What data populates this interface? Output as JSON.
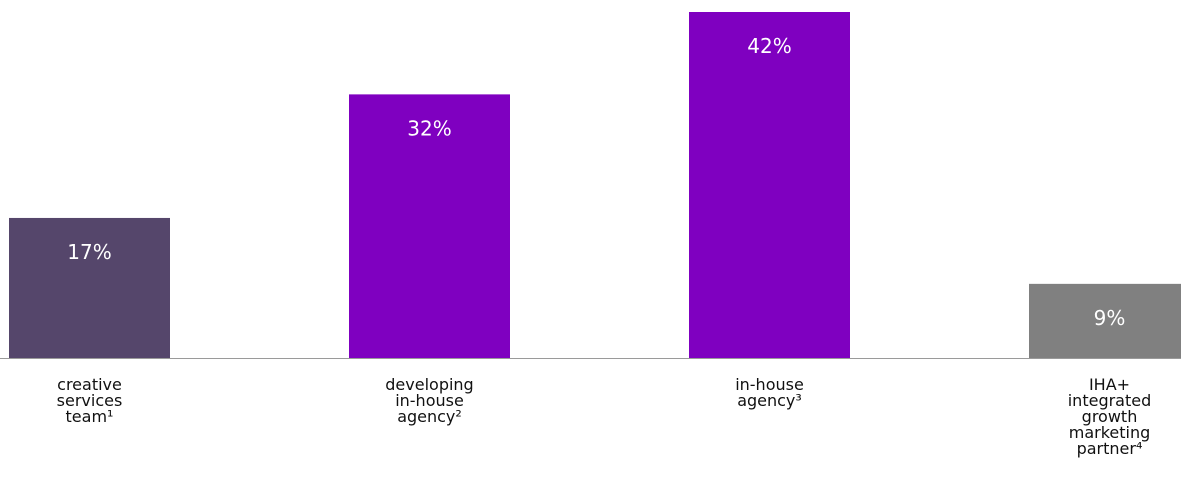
{
  "chart_data": {
    "type": "bar",
    "categories": [
      [
        "creative",
        "services",
        "team¹"
      ],
      [
        "developing",
        "in-house",
        "agency²"
      ],
      [
        "in-house",
        "agency³"
      ],
      [
        "IHA+",
        "integrated",
        "growth",
        "marketing",
        "partner⁴"
      ]
    ],
    "values": [
      17,
      32,
      42,
      9
    ],
    "value_labels": [
      "17%",
      "32%",
      "42%",
      "9%"
    ],
    "colors": [
      "#55466b",
      "#7f00c0",
      "#7f00c0",
      "#808080"
    ],
    "baseline_color": "#9a9a9a",
    "ylim": [
      0,
      42
    ],
    "grid": false,
    "legend": "none",
    "title": "",
    "xlabel": "",
    "ylabel": ""
  },
  "footnote": ""
}
